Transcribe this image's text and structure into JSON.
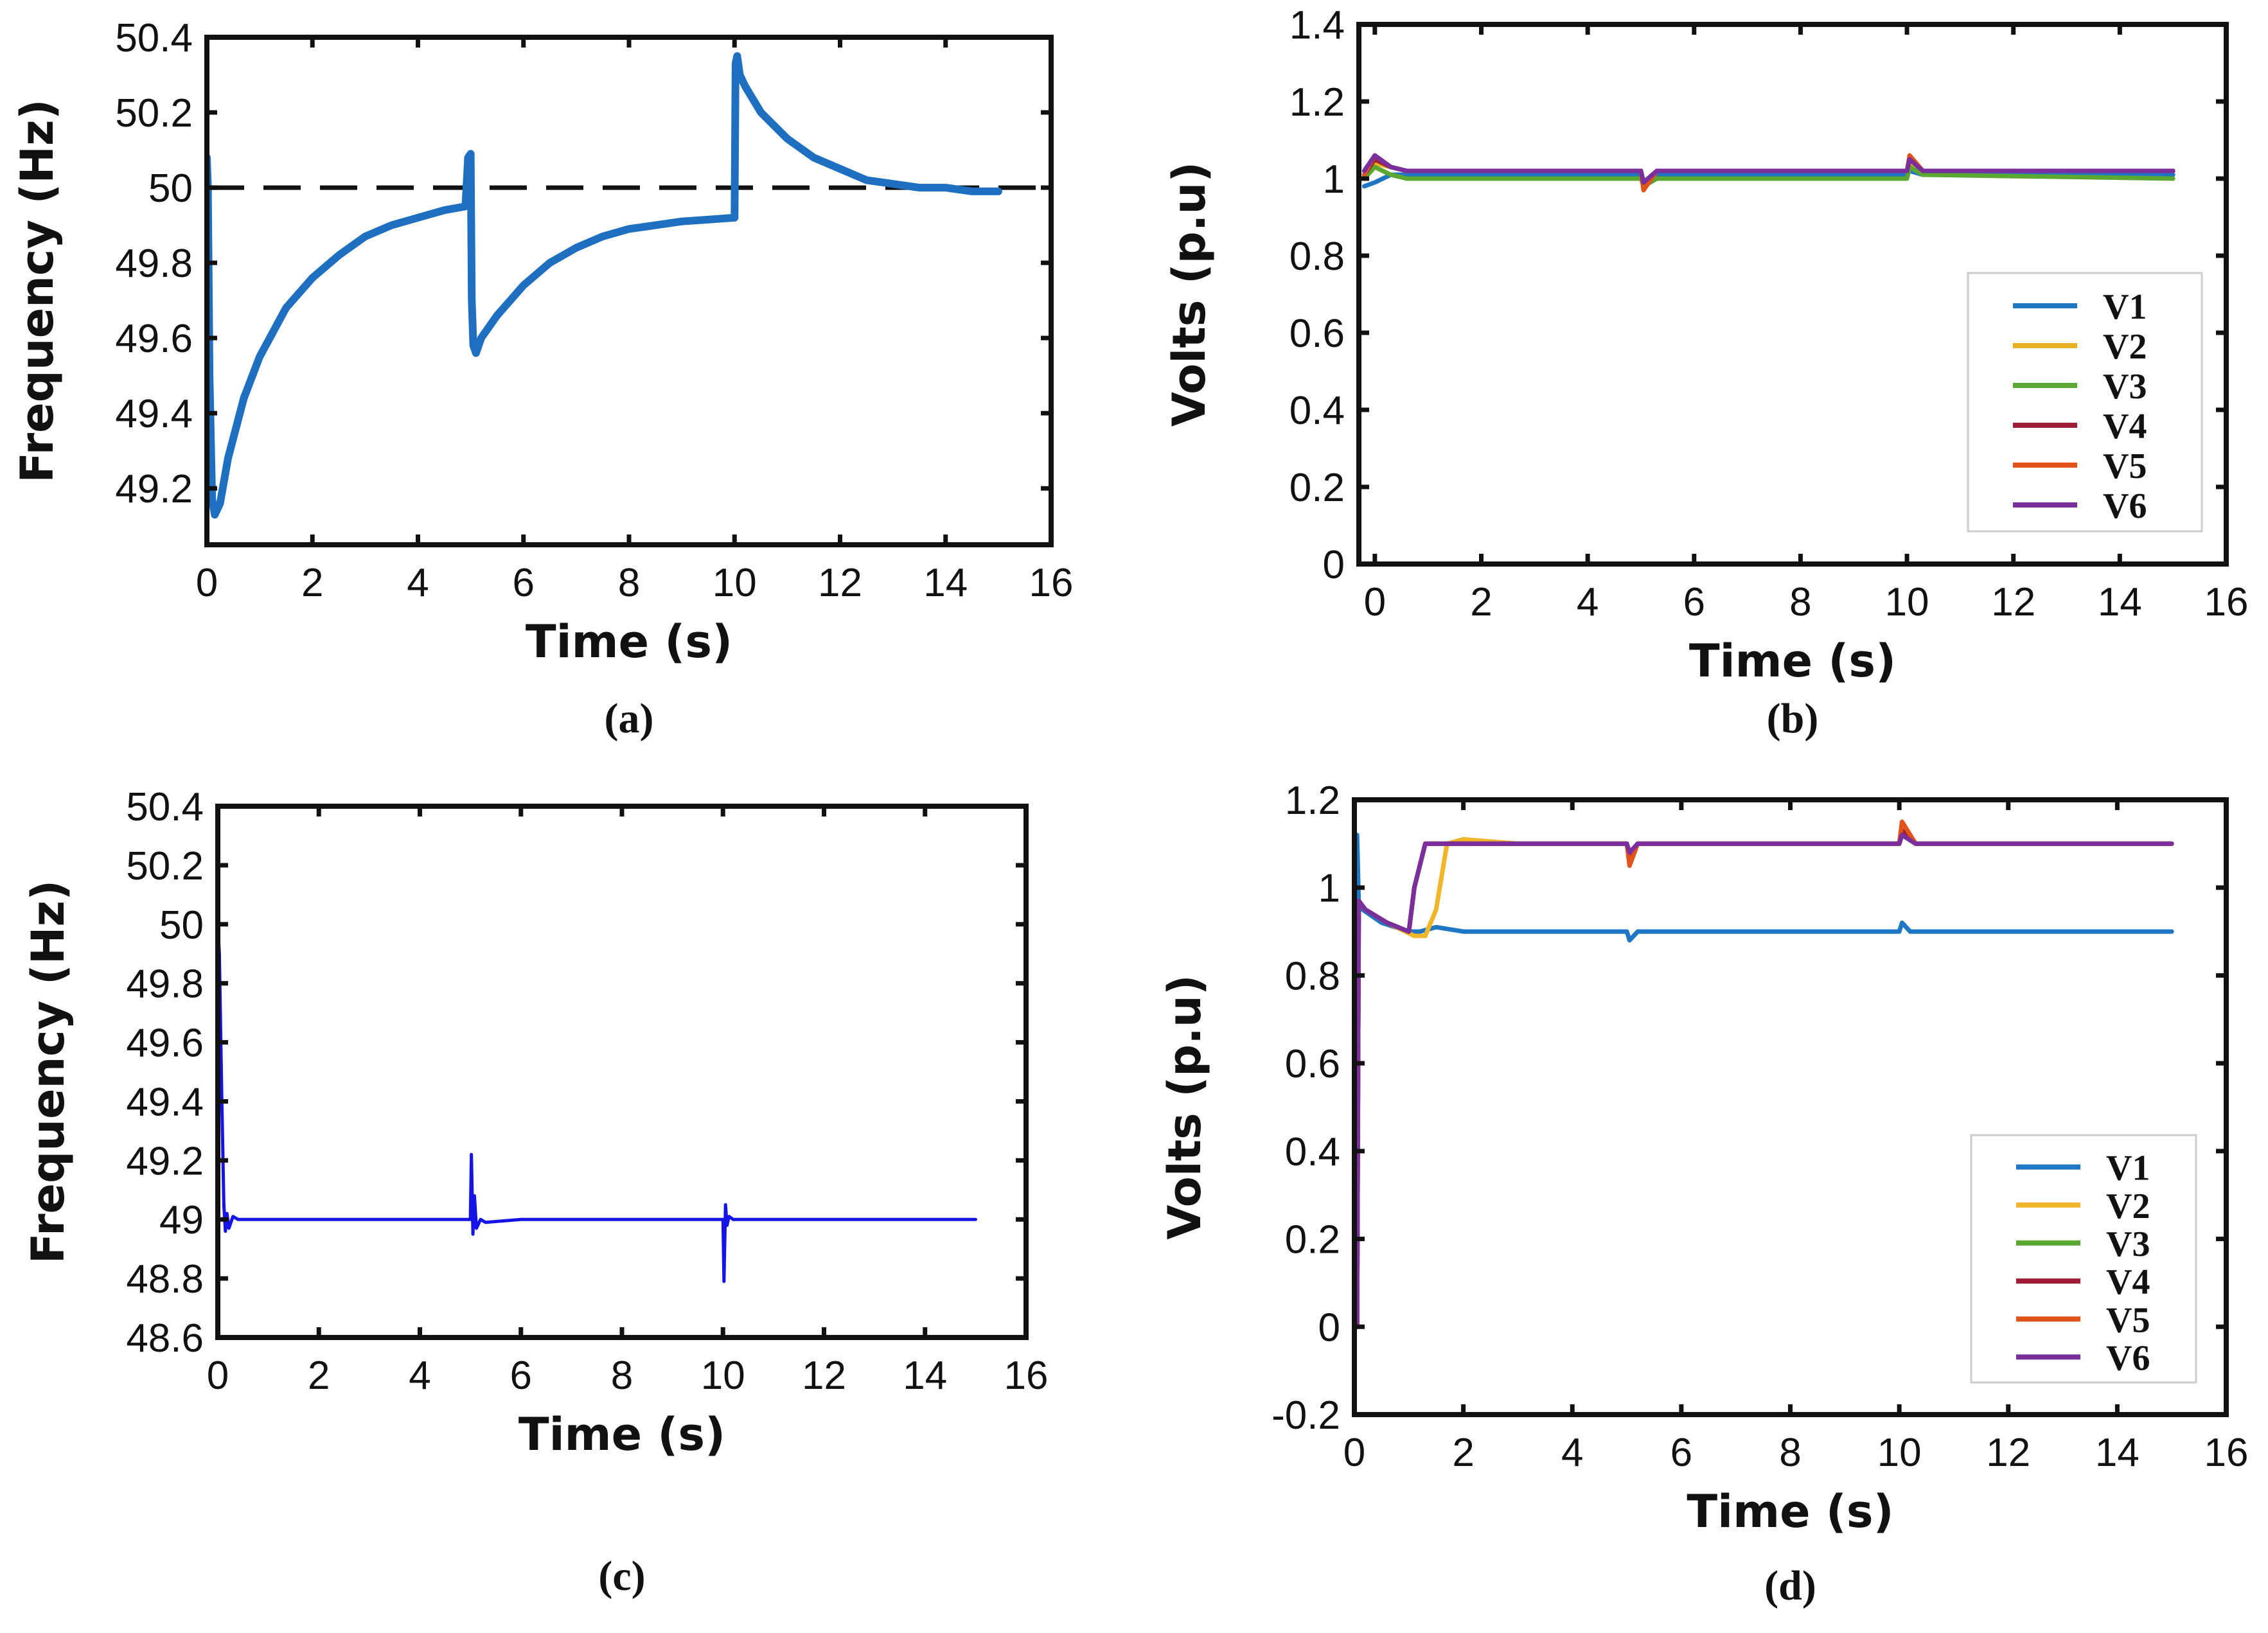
{
  "figure": {
    "panels": [
      {
        "key": "a",
        "caption": "(a)"
      },
      {
        "key": "b",
        "caption": "(b)"
      },
      {
        "key": "c",
        "caption": "(c)"
      },
      {
        "key": "d",
        "caption": "(d)"
      }
    ]
  },
  "chart_data": [
    {
      "panel": "a",
      "type": "line",
      "caption": "(a)",
      "xlabel": "Time (s)",
      "ylabel": "Frequency (Hz)",
      "xlim": [
        0,
        16
      ],
      "ylim": [
        49.05,
        50.4
      ],
      "xticks": [
        0,
        2,
        4,
        6,
        8,
        10,
        12,
        14,
        16
      ],
      "yticks": [
        49.2,
        49.4,
        49.6,
        49.8,
        50,
        50.2,
        50.4
      ],
      "xtick_labels": [
        "0",
        "2",
        "4",
        "6",
        "8",
        "10",
        "12",
        "14",
        "16"
      ],
      "ytick_labels": [
        "49.2",
        "49.4",
        "49.6",
        "49.8",
        "50",
        "50.2",
        "50.4"
      ],
      "legend": [],
      "series": [
        {
          "name": "Frequency",
          "color": "#1f6fc0",
          "width": 12,
          "x": [
            0,
            0.02,
            0.05,
            0.1,
            0.15,
            0.25,
            0.4,
            0.7,
            1.0,
            1.5,
            2.0,
            2.5,
            3.0,
            3.5,
            4.0,
            4.5,
            4.9,
            4.95,
            5.0,
            5.02,
            5.05,
            5.1,
            5.2,
            5.5,
            6.0,
            6.5,
            7.0,
            7.5,
            8.0,
            8.5,
            9.0,
            9.5,
            10.0,
            10.02,
            10.05,
            10.1,
            10.2,
            10.5,
            11.0,
            11.5,
            12.0,
            12.5,
            13.0,
            13.5,
            14.0,
            14.5,
            15.0
          ],
          "y": [
            50.08,
            50.0,
            49.5,
            49.17,
            49.13,
            49.16,
            49.28,
            49.44,
            49.55,
            49.68,
            49.76,
            49.82,
            49.87,
            49.9,
            49.92,
            49.94,
            49.95,
            50.08,
            50.09,
            49.7,
            49.58,
            49.56,
            49.6,
            49.66,
            49.74,
            49.8,
            49.84,
            49.87,
            49.89,
            49.9,
            49.91,
            49.915,
            49.92,
            50.33,
            50.35,
            50.3,
            50.27,
            50.2,
            50.13,
            50.08,
            50.05,
            50.02,
            50.01,
            50.0,
            50.0,
            49.99,
            49.99
          ]
        }
      ],
      "reference_lines": [
        {
          "name": "50 Hz nominal",
          "y": 50,
          "x": [
            0,
            16
          ],
          "color": "#111111",
          "style": "dashed"
        }
      ]
    },
    {
      "panel": "b",
      "type": "line",
      "caption": "(b)",
      "xlabel": "Time (s)",
      "ylabel": "Volts (p.u)",
      "xlim": [
        -0.3,
        16
      ],
      "ylim": [
        0,
        1.4
      ],
      "xticks": [
        0,
        2,
        4,
        6,
        8,
        10,
        12,
        14,
        16
      ],
      "yticks": [
        0,
        0.2,
        0.4,
        0.6,
        0.8,
        1,
        1.2,
        1.4
      ],
      "xtick_labels": [
        "0",
        "2",
        "4",
        "6",
        "8",
        "10",
        "12",
        "14",
        "16"
      ],
      "ytick_labels": [
        "0",
        "0.2",
        "0.4",
        "0.6",
        "0.8",
        "1",
        "1.2",
        "1.4"
      ],
      "legend": [
        "V1",
        "V2",
        "V3",
        "V4",
        "V5",
        "V6"
      ],
      "legend_position": "lower-right",
      "series": [
        {
          "name": "V1",
          "color": "#1f77c4",
          "x": [
            -0.2,
            0,
            0.3,
            0.6,
            1,
            5,
            5.05,
            5.3,
            10,
            10.05,
            10.3,
            15
          ],
          "y": [
            0.98,
            0.99,
            1.01,
            1.01,
            1.01,
            1.01,
            0.99,
            1.01,
            1.01,
            1.02,
            1.01,
            1.01
          ]
        },
        {
          "name": "V2",
          "color": "#e8b121",
          "x": [
            -0.2,
            0,
            0.3,
            0.6,
            1,
            5,
            5.05,
            5.3,
            10,
            10.05,
            10.3,
            15
          ],
          "y": [
            1.0,
            1.04,
            1.03,
            1.02,
            1.02,
            1.02,
            0.99,
            1.02,
            1.02,
            1.04,
            1.02,
            1.02
          ]
        },
        {
          "name": "V3",
          "color": "#5aa832",
          "x": [
            -0.2,
            0,
            0.3,
            0.6,
            1,
            5,
            5.05,
            5.3,
            10,
            10.05,
            10.3,
            15
          ],
          "y": [
            1.0,
            1.03,
            1.01,
            1.0,
            1.0,
            1.0,
            0.98,
            1.0,
            1.0,
            1.03,
            1.01,
            1.0
          ]
        },
        {
          "name": "V4",
          "color": "#a01c34",
          "x": [
            -0.2,
            0,
            0.3,
            0.6,
            1,
            5,
            5.05,
            5.3,
            10,
            10.05,
            10.3,
            15
          ],
          "y": [
            1.01,
            1.05,
            1.03,
            1.02,
            1.02,
            1.02,
            0.99,
            1.02,
            1.02,
            1.05,
            1.02,
            1.02
          ]
        },
        {
          "name": "V5",
          "color": "#e0541b",
          "x": [
            -0.2,
            0,
            0.3,
            0.6,
            1,
            5,
            5.05,
            5.3,
            10,
            10.05,
            10.3,
            15
          ],
          "y": [
            1.01,
            1.06,
            1.03,
            1.02,
            1.02,
            1.02,
            0.97,
            1.02,
            1.02,
            1.06,
            1.02,
            1.02
          ]
        },
        {
          "name": "V6",
          "color": "#7b2f9c",
          "x": [
            -0.2,
            0,
            0.3,
            0.6,
            1,
            5,
            5.05,
            5.3,
            10,
            10.05,
            10.3,
            15
          ],
          "y": [
            1.02,
            1.06,
            1.03,
            1.02,
            1.02,
            1.02,
            0.99,
            1.02,
            1.02,
            1.05,
            1.02,
            1.02
          ]
        }
      ]
    },
    {
      "panel": "c",
      "type": "line",
      "caption": "(c)",
      "xlabel": "Time (s)",
      "ylabel": "Frequency (Hz)",
      "xlim": [
        0,
        16
      ],
      "ylim": [
        48.6,
        50.4
      ],
      "xticks": [
        0,
        2,
        4,
        6,
        8,
        10,
        12,
        14,
        16
      ],
      "yticks": [
        48.6,
        48.8,
        49,
        49.2,
        49.4,
        49.6,
        49.8,
        50,
        50.2,
        50.4
      ],
      "xtick_labels": [
        "0",
        "2",
        "4",
        "6",
        "8",
        "10",
        "12",
        "14",
        "16"
      ],
      "ytick_labels": [
        "48.6",
        "48.8",
        "49",
        "49.2",
        "49.4",
        "49.6",
        "49.8",
        "50",
        "50.2",
        "50.4"
      ],
      "legend": [],
      "series": [
        {
          "name": "Frequency",
          "color": "#1414e6",
          "width": 5,
          "x": [
            0,
            0.03,
            0.08,
            0.12,
            0.15,
            0.18,
            0.22,
            0.3,
            0.4,
            1,
            5,
            5.02,
            5.05,
            5.08,
            5.12,
            5.2,
            5.3,
            6,
            10,
            10.02,
            10.05,
            10.08,
            10.12,
            10.2,
            10.3,
            15
          ],
          "y": [
            50.0,
            49.9,
            49.4,
            49.05,
            48.96,
            49.02,
            48.97,
            49.01,
            49.0,
            49.0,
            49.0,
            49.22,
            48.95,
            49.08,
            48.97,
            49.0,
            48.99,
            49.0,
            49.0,
            48.79,
            49.05,
            48.98,
            49.01,
            49.0,
            49.0,
            49.0
          ]
        }
      ]
    },
    {
      "panel": "d",
      "type": "line",
      "caption": "(d)",
      "xlabel": "Time (s)",
      "ylabel": "Volts (p.u)",
      "xlim": [
        0,
        16
      ],
      "ylim": [
        -0.2,
        1.2
      ],
      "xticks": [
        0,
        2,
        4,
        6,
        8,
        10,
        12,
        14,
        16
      ],
      "yticks": [
        -0.2,
        0,
        0.2,
        0.4,
        0.6,
        0.8,
        1,
        1.2
      ],
      "xtick_labels": [
        "0",
        "2",
        "4",
        "6",
        "8",
        "10",
        "12",
        "14",
        "16"
      ],
      "ytick_labels": [
        "-0.2",
        "0",
        "0.2",
        "0.4",
        "0.6",
        "0.8",
        "1",
        "1.2"
      ],
      "legend": [
        "V1",
        "V2",
        "V3",
        "V4",
        "V5",
        "V6"
      ],
      "legend_position": "lower-right",
      "series": [
        {
          "name": "V1",
          "color": "#1f77c4",
          "x": [
            0.05,
            0.08,
            0.15,
            0.5,
            1.0,
            1.2,
            1.5,
            2.0,
            5,
            5.05,
            5.2,
            10,
            10.05,
            10.2,
            15
          ],
          "y": [
            1.12,
            0.96,
            0.95,
            0.92,
            0.9,
            0.9,
            0.91,
            0.9,
            0.9,
            0.88,
            0.9,
            0.9,
            0.92,
            0.9,
            0.9
          ]
        },
        {
          "name": "V2",
          "color": "#f0b528",
          "x": [
            0.05,
            0.08,
            0.2,
            0.6,
            1.1,
            1.3,
            1.5,
            1.7,
            2.0,
            3,
            5,
            5.05,
            5.2,
            10,
            10.05,
            10.3,
            15
          ],
          "y": [
            0.0,
            0.97,
            0.95,
            0.92,
            0.89,
            0.89,
            0.95,
            1.1,
            1.11,
            1.1,
            1.1,
            1.08,
            1.1,
            1.1,
            1.13,
            1.1,
            1.1
          ]
        },
        {
          "name": "V3",
          "color": "#5aa832",
          "x": [
            0.05,
            0.08,
            0.2,
            0.6,
            1.0,
            1.1,
            1.3,
            2,
            5,
            5.05,
            5.2,
            10,
            10.05,
            10.3,
            15
          ],
          "y": [
            0.0,
            0.97,
            0.95,
            0.92,
            0.9,
            1.0,
            1.1,
            1.1,
            1.1,
            1.07,
            1.1,
            1.1,
            1.12,
            1.1,
            1.1
          ]
        },
        {
          "name": "V4",
          "color": "#a01c34",
          "x": [
            0.05,
            0.08,
            0.2,
            0.6,
            1.0,
            1.1,
            1.3,
            2,
            5,
            5.05,
            5.2,
            10,
            10.05,
            10.3,
            15
          ],
          "y": [
            0.0,
            0.97,
            0.95,
            0.92,
            0.9,
            1.0,
            1.1,
            1.1,
            1.1,
            1.06,
            1.1,
            1.1,
            1.13,
            1.1,
            1.1
          ]
        },
        {
          "name": "V5",
          "color": "#e0541b",
          "x": [
            0.05,
            0.08,
            0.2,
            0.6,
            1.0,
            1.1,
            1.3,
            2,
            5,
            5.05,
            5.2,
            10,
            10.05,
            10.3,
            15
          ],
          "y": [
            0.0,
            0.97,
            0.95,
            0.92,
            0.9,
            1.0,
            1.1,
            1.1,
            1.1,
            1.05,
            1.1,
            1.1,
            1.15,
            1.1,
            1.1
          ]
        },
        {
          "name": "V6",
          "color": "#7b2f9c",
          "x": [
            0.05,
            0.08,
            0.2,
            0.6,
            1.0,
            1.1,
            1.3,
            2,
            5,
            5.05,
            5.2,
            10,
            10.05,
            10.3,
            15
          ],
          "y": [
            0.0,
            0.97,
            0.95,
            0.92,
            0.9,
            1.0,
            1.1,
            1.1,
            1.1,
            1.08,
            1.1,
            1.1,
            1.12,
            1.1,
            1.1
          ]
        }
      ]
    }
  ]
}
